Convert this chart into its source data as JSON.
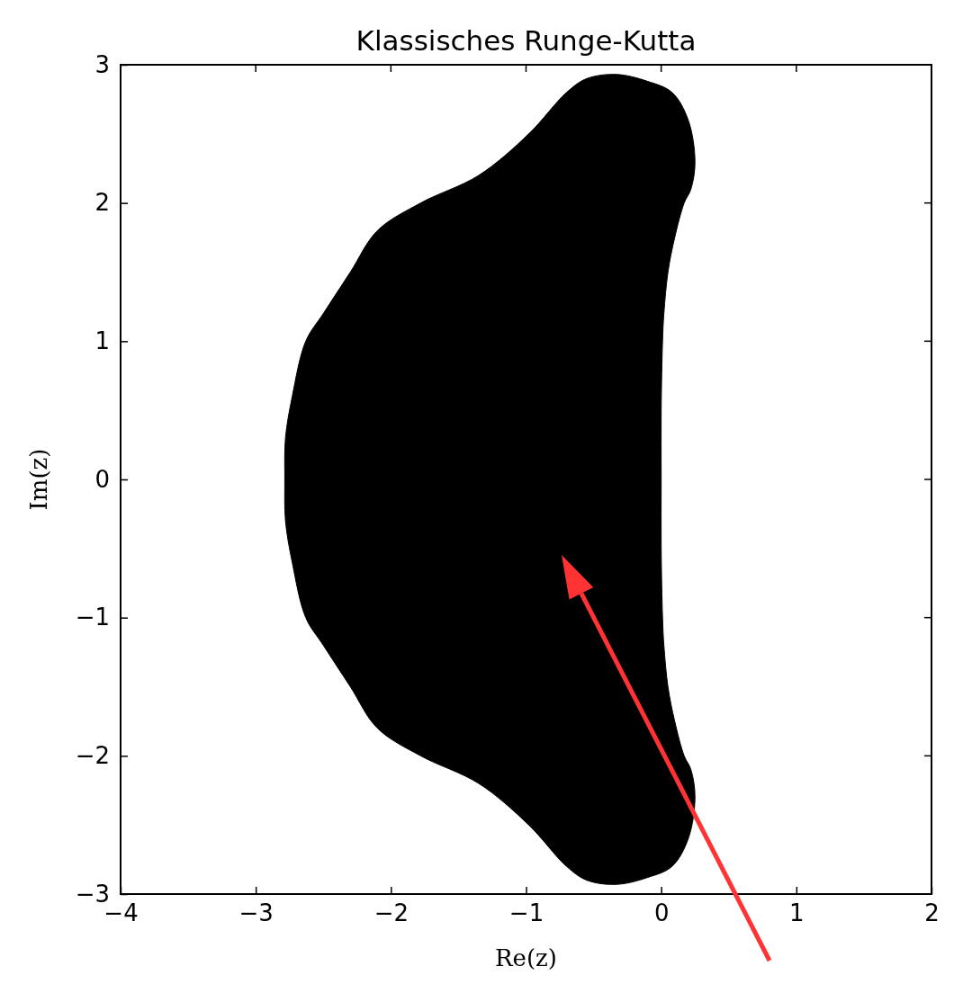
{
  "chart_data": {
    "type": "area",
    "title": "Klassisches Runge-Kutta",
    "xlabel": "Re(z)",
    "ylabel": "Im(z)",
    "xlim": [
      -4,
      2
    ],
    "ylim": [
      -3,
      3
    ],
    "xticks": [
      {
        "value": -4,
        "label": "−4"
      },
      {
        "value": -3,
        "label": "−3"
      },
      {
        "value": -2,
        "label": "−2"
      },
      {
        "value": -1,
        "label": "−1"
      },
      0,
      1,
      2
    ],
    "yticks": [
      {
        "value": -3,
        "label": "−3"
      },
      {
        "value": -2,
        "label": "−2"
      },
      {
        "value": -1,
        "label": "−1"
      },
      0,
      1,
      2,
      3
    ],
    "grid": false,
    "series": [
      {
        "color": "#000000",
        "x": [
          -0.33,
          -0.1,
          0.08,
          0.2,
          0.25,
          0.22,
          0.17,
          0.1,
          0.05,
          0.02,
          0.01,
          0,
          0,
          0,
          0.01,
          0.02,
          0.05,
          0.1,
          0.17,
          0.22,
          0.25,
          0.2,
          0.08,
          -0.1,
          -0.33,
          -0.55,
          -0.7,
          -0.98,
          -1.35,
          -1.78,
          -2.1,
          -2.3,
          -2.5,
          -2.63,
          -2.73,
          -2.78,
          -2.785,
          -2.78,
          -2.73,
          -2.63,
          -2.5,
          -2.3,
          -2.1,
          -1.78,
          -1.35,
          -0.98,
          -0.7,
          -0.55
        ],
        "values": [
          2.93,
          2.88,
          2.8,
          2.6,
          2.3,
          2.1,
          2.0,
          1.75,
          1.5,
          1.2,
          1.0,
          0.5,
          0,
          -0.5,
          -1.0,
          -1.2,
          -1.5,
          -1.75,
          -2.0,
          -2.1,
          -2.3,
          -2.6,
          -2.8,
          -2.88,
          -2.93,
          -2.9,
          -2.8,
          -2.5,
          -2.2,
          -2.0,
          -1.8,
          -1.5,
          -1.2,
          -1.0,
          -0.6,
          -0.3,
          0,
          0.3,
          0.6,
          1.0,
          1.2,
          1.5,
          1.8,
          2.0,
          2.2,
          2.5,
          2.8,
          2.9
        ]
      }
    ]
  }
}
